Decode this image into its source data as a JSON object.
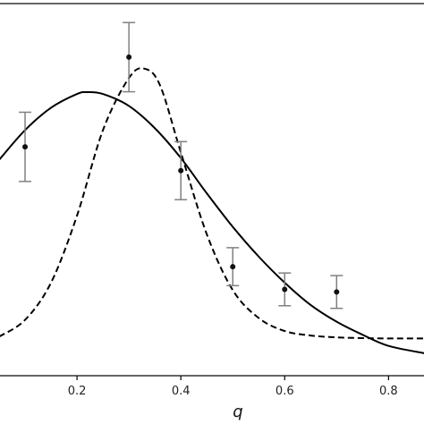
{
  "chart_data": {
    "type": "scatter",
    "title": "",
    "xlabel": "q",
    "ylabel": "",
    "xlim": [
      0.05,
      0.87
    ],
    "ylim": [
      0.0,
      1.0
    ],
    "grid": false,
    "legend": "none",
    "x_ticks": [
      {
        "value": 0.2,
        "label": "0.2"
      },
      {
        "value": 0.4,
        "label": "0.4"
      },
      {
        "value": 0.6,
        "label": "0.6"
      },
      {
        "value": 0.8,
        "label": "0.8"
      }
    ],
    "series": [
      {
        "kind": "points-with-error",
        "color": "#111111",
        "error_color": "#808080",
        "points": [
          {
            "x": 0.1,
            "y": 0.615,
            "err": 0.093
          },
          {
            "x": 0.3,
            "y": 0.856,
            "err": 0.093
          },
          {
            "x": 0.4,
            "y": 0.551,
            "err": 0.078
          },
          {
            "x": 0.5,
            "y": 0.293,
            "err": 0.051
          },
          {
            "x": 0.6,
            "y": 0.232,
            "err": 0.044
          },
          {
            "x": 0.7,
            "y": 0.225,
            "err": 0.044
          }
        ]
      },
      {
        "kind": "line",
        "style": "solid",
        "color": "#000000",
        "x": [
          0.05,
          0.1,
          0.15,
          0.2,
          0.22,
          0.25,
          0.3,
          0.35,
          0.4,
          0.45,
          0.5,
          0.55,
          0.6,
          0.65,
          0.7,
          0.75,
          0.8,
          0.87
        ],
        "y": [
          0.58,
          0.66,
          0.72,
          0.757,
          0.762,
          0.757,
          0.725,
          0.665,
          0.585,
          0.49,
          0.4,
          0.32,
          0.25,
          0.19,
          0.145,
          0.11,
          0.08,
          0.06
        ]
      },
      {
        "kind": "line",
        "style": "dashed",
        "color": "#000000",
        "x": [
          0.05,
          0.1,
          0.15,
          0.2,
          0.25,
          0.3,
          0.33,
          0.36,
          0.4,
          0.45,
          0.5,
          0.55,
          0.6,
          0.65,
          0.7,
          0.75,
          0.8,
          0.87
        ],
        "y": [
          0.105,
          0.15,
          0.25,
          0.43,
          0.66,
          0.8,
          0.825,
          0.78,
          0.6,
          0.38,
          0.23,
          0.155,
          0.12,
          0.108,
          0.103,
          0.101,
          0.1,
          0.1
        ]
      }
    ]
  }
}
